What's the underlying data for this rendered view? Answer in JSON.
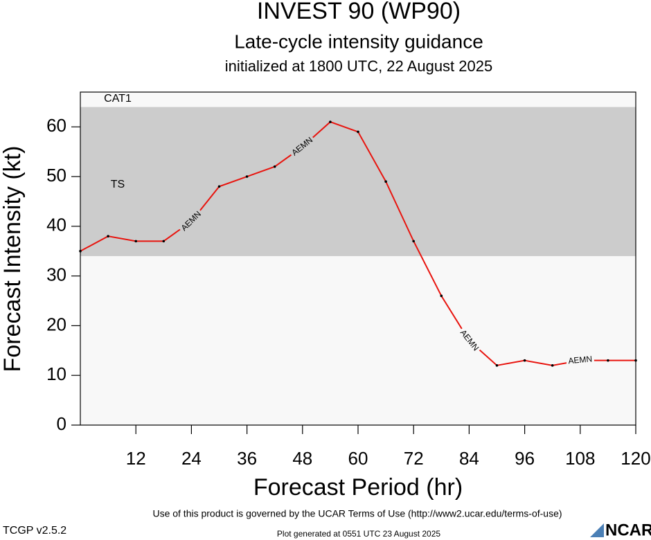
{
  "chart_data": {
    "type": "line",
    "title": "INVEST 90 (WP90)",
    "subtitle": "Late-cycle intensity guidance",
    "init": "initialized at 1800 UTC, 22 August 2025",
    "x_label": "Forecast Period (hr)",
    "y_label": "Forecast Intensity (kt)",
    "x": [
      0,
      6,
      12,
      18,
      24,
      30,
      36,
      42,
      48,
      54,
      60,
      66,
      72,
      78,
      84,
      90,
      96,
      102,
      108,
      114,
      120
    ],
    "series": [
      {
        "name": "AEMN",
        "color": "#e8140e",
        "values": [
          35,
          38,
          37,
          37,
          41,
          48,
          50,
          52,
          56,
          61,
          59,
          49,
          37,
          26,
          17,
          12,
          13,
          12,
          13,
          13,
          13
        ],
        "label_x": [
          24,
          48,
          84,
          108
        ]
      }
    ],
    "bands": [
      {
        "name": "TS",
        "from": 34,
        "to": 64,
        "color": "#cccccc"
      },
      {
        "name": "CAT1",
        "from": 64,
        "color": "#f8f8f8"
      }
    ],
    "xlim": [
      0,
      120
    ],
    "ylim": [
      0,
      67
    ],
    "xticks": [
      12,
      24,
      36,
      48,
      60,
      72,
      84,
      96,
      108,
      120
    ],
    "yticks": [
      0,
      10,
      20,
      30,
      40,
      50,
      60
    ],
    "footer": "Use of this product is governed by the UCAR Terms of Use (http://www2.ucar.edu/terms-of-use)",
    "version": "TCGP v2.5.2",
    "generated": "Plot generated at 0551 UTC   23 August 2025",
    "logo": "NCAR"
  }
}
